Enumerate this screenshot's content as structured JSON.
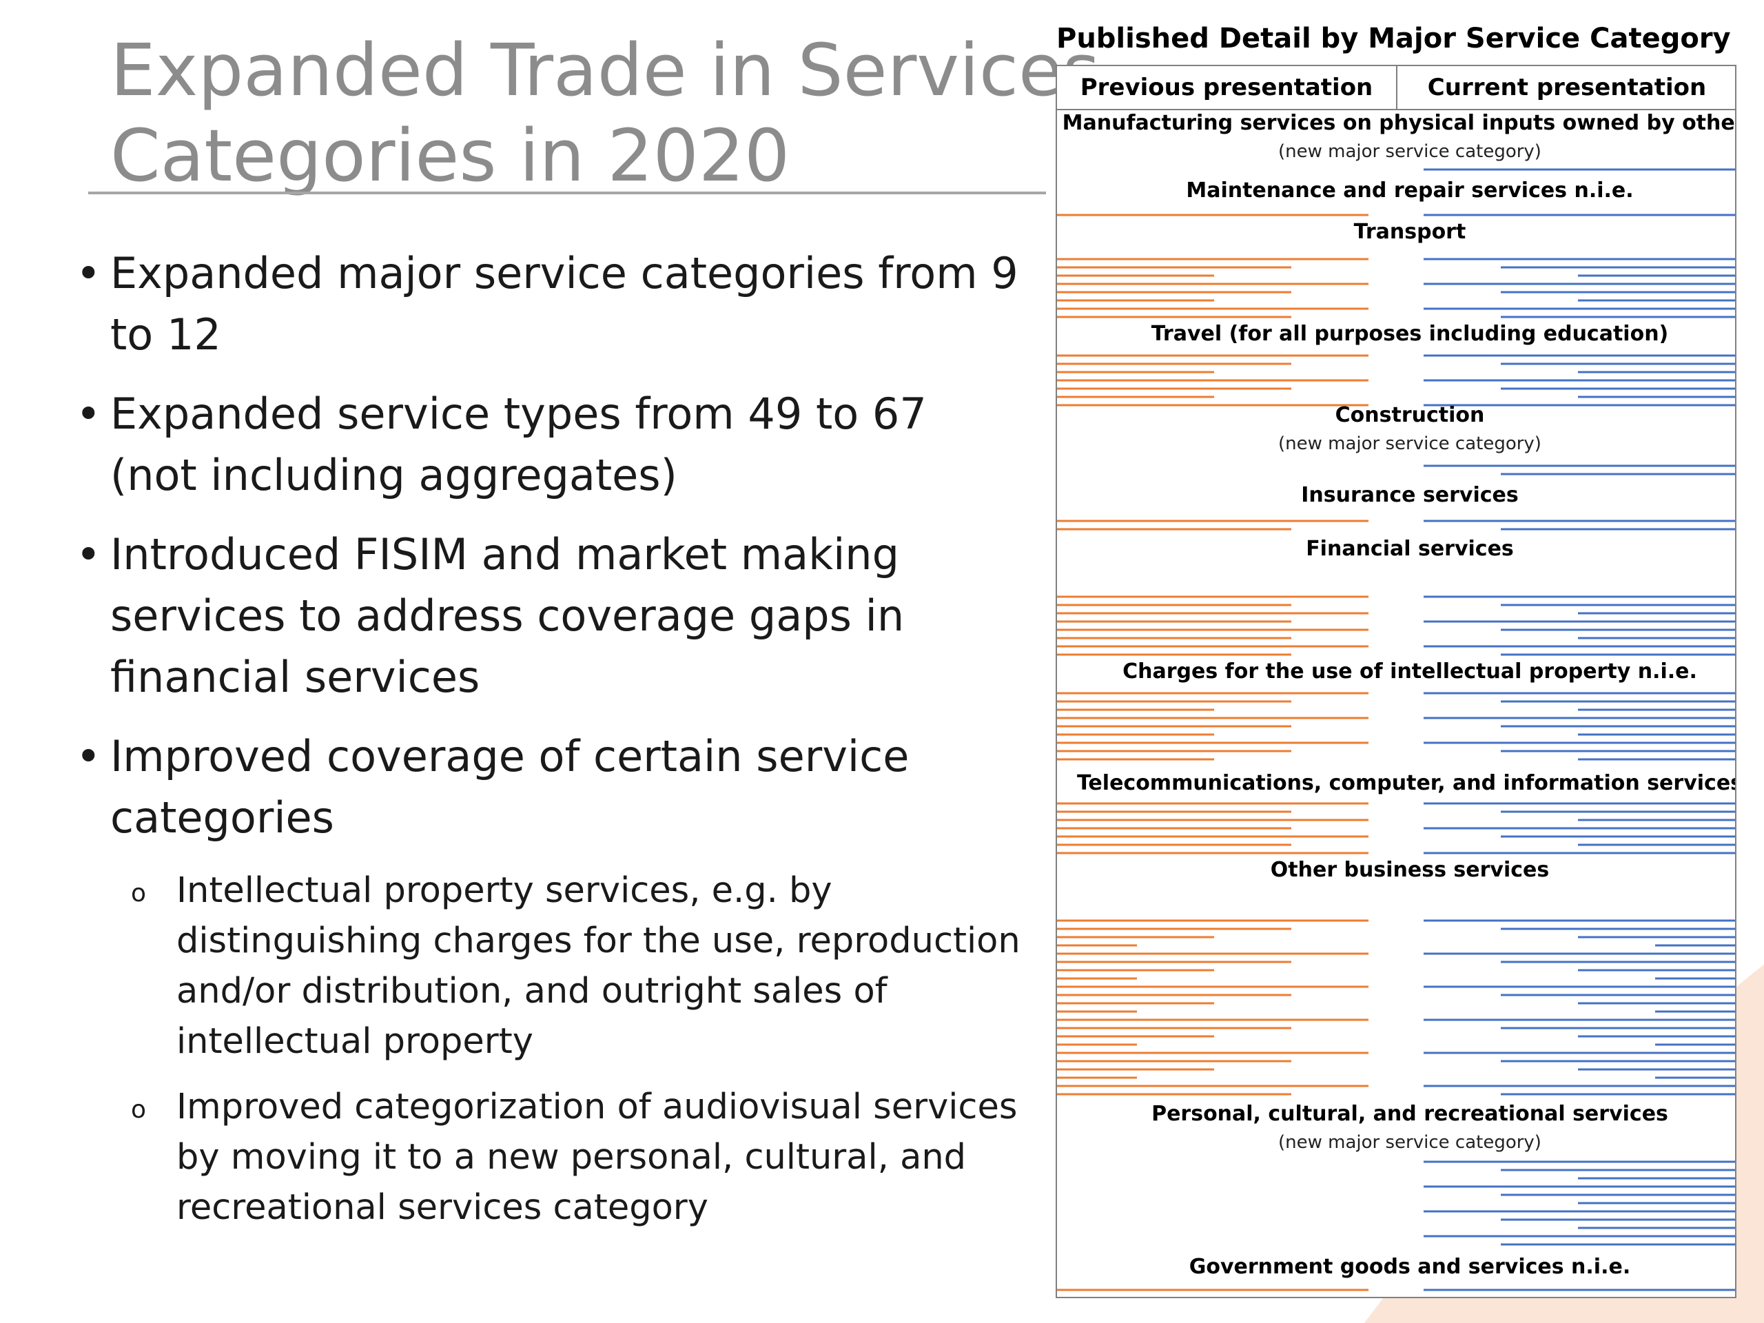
{
  "slide": {
    "title_lines": [
      "Expanded Trade in Services",
      "Categories in 2020"
    ],
    "bullets": [
      "Expanded major service categories from 9 to 12",
      "Expanded service types from 49 to 67 (not including aggregates)",
      "Introduced FISIM and market making services to address coverage gaps in financial services",
      "Improved coverage of certain service categories"
    ],
    "sub_bullets": [
      "Intellectual property services, e.g. by distinguishing charges for the use, reproduction and/or distribution, and outright sales of intellectual property",
      "Improved categorization of audiovisual services by moving it to a new personal, cultural, and recreational services category"
    ],
    "bullet_glyph": "•",
    "sub_bullet_glyph": "o"
  },
  "chart": {
    "title": "Published Detail by Major Service Category",
    "columns": [
      "Previous presentation",
      "Current presentation"
    ],
    "colors": {
      "previous": "#ed7d31",
      "current": "#4472c4",
      "decor": "#fbe5d6"
    },
    "note_text": "(new major service category)",
    "categories": [
      {
        "name": "Manufacturing services on physical inputs owned by others",
        "new_category": true
      },
      {
        "name": "Maintenance and repair services n.i.e.",
        "new_category": false
      },
      {
        "name": "Transport",
        "new_category": false
      },
      {
        "name": "Travel (for all purposes including education)",
        "new_category": false
      },
      {
        "name": "Construction",
        "new_category": true
      },
      {
        "name": "Insurance services",
        "new_category": false
      },
      {
        "name": "Financial services",
        "new_category": false
      },
      {
        "name": "Charges for the use of intellectual property n.i.e.",
        "new_category": false
      },
      {
        "name": "Telecommunications, computer, and information services",
        "new_category": false
      },
      {
        "name": "Other business services",
        "new_category": false
      },
      {
        "name": "Personal, cultural, and recreational services",
        "new_category": true
      },
      {
        "name": "Government goods and services n.i.e.",
        "new_category": false
      }
    ]
  }
}
